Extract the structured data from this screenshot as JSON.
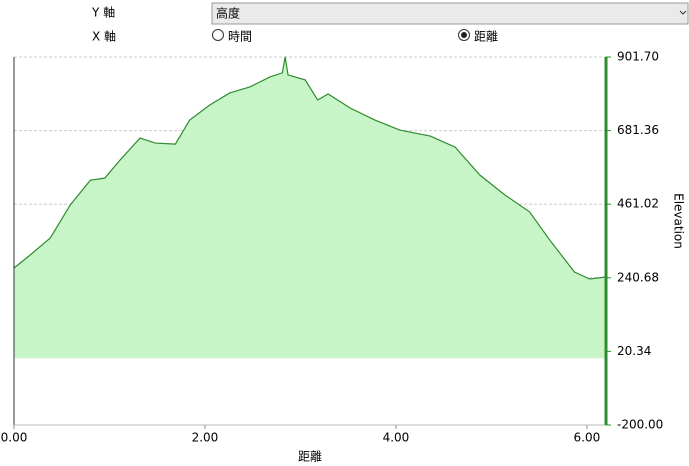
{
  "controls": {
    "y_axis_label": "Y 軸",
    "y_axis_value": "高度",
    "x_axis_label": "X 軸",
    "x_options": [
      {
        "label": "時間",
        "selected": false
      },
      {
        "label": "距離",
        "selected": true
      }
    ]
  },
  "chart_data": {
    "type": "area",
    "xlabel": "距離",
    "ylabel": "Elevation",
    "y_axis_side": "right",
    "color": "#2e8b2e",
    "fill_color": "#c8f5c8",
    "grid": true,
    "x": [
      0,
      0.17,
      0.38,
      0.59,
      0.8,
      0.95,
      1.11,
      1.32,
      1.48,
      1.69,
      1.84,
      2.05,
      2.26,
      2.47,
      2.68,
      2.81,
      2.84,
      2.87,
      3.05,
      3.18,
      3.29,
      3.52,
      3.78,
      4.04,
      4.36,
      4.62,
      4.88,
      5.14,
      5.4,
      5.61,
      5.87,
      6.03,
      6.2
    ],
    "values": [
      270,
      309,
      360,
      459,
      533,
      539,
      593,
      659,
      644,
      641,
      713,
      758,
      794,
      812,
      842,
      854,
      902,
      848,
      833,
      773,
      791,
      749,
      713,
      683,
      665,
      632,
      548,
      489,
      438,
      354,
      258,
      237,
      243
    ],
    "xlim": [
      0,
      6.2
    ],
    "ylim": [
      -200,
      901.7
    ],
    "xticks": [
      {
        "value": 0,
        "label": "0.00"
      },
      {
        "value": 2,
        "label": "2.00"
      },
      {
        "value": 4,
        "label": "4.00"
      },
      {
        "value": 6,
        "label": "6.00"
      }
    ],
    "yticks": [
      {
        "value": -200,
        "label": "-200.00"
      },
      20.34,
      240.68,
      461.02,
      681.36,
      {
        "value": 901.7,
        "label": "901.70"
      }
    ]
  }
}
